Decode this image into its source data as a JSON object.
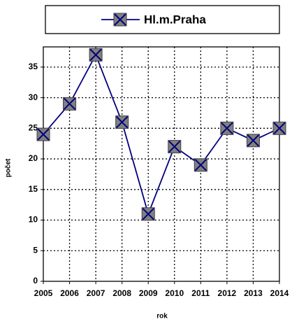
{
  "chart_data": {
    "type": "line",
    "x": [
      2005,
      2006,
      2007,
      2008,
      2009,
      2010,
      2011,
      2012,
      2013,
      2014
    ],
    "xlim": [
      2005,
      2014
    ],
    "xticks": [
      2005,
      2006,
      2007,
      2008,
      2009,
      2010,
      2011,
      2012,
      2013,
      2014
    ],
    "ylim": [
      0,
      38.3
    ],
    "yticks": [
      0,
      5,
      10,
      15,
      20,
      25,
      30,
      35
    ],
    "x_label": "rok",
    "y_label": "počet",
    "grid": true,
    "legend": "top",
    "series": [
      {
        "name": "Hl.m.Praha",
        "color": "#000080",
        "marker_color": "#808080",
        "values": [
          24,
          29,
          37,
          26,
          11,
          22,
          19,
          25,
          23,
          25
        ]
      }
    ]
  }
}
